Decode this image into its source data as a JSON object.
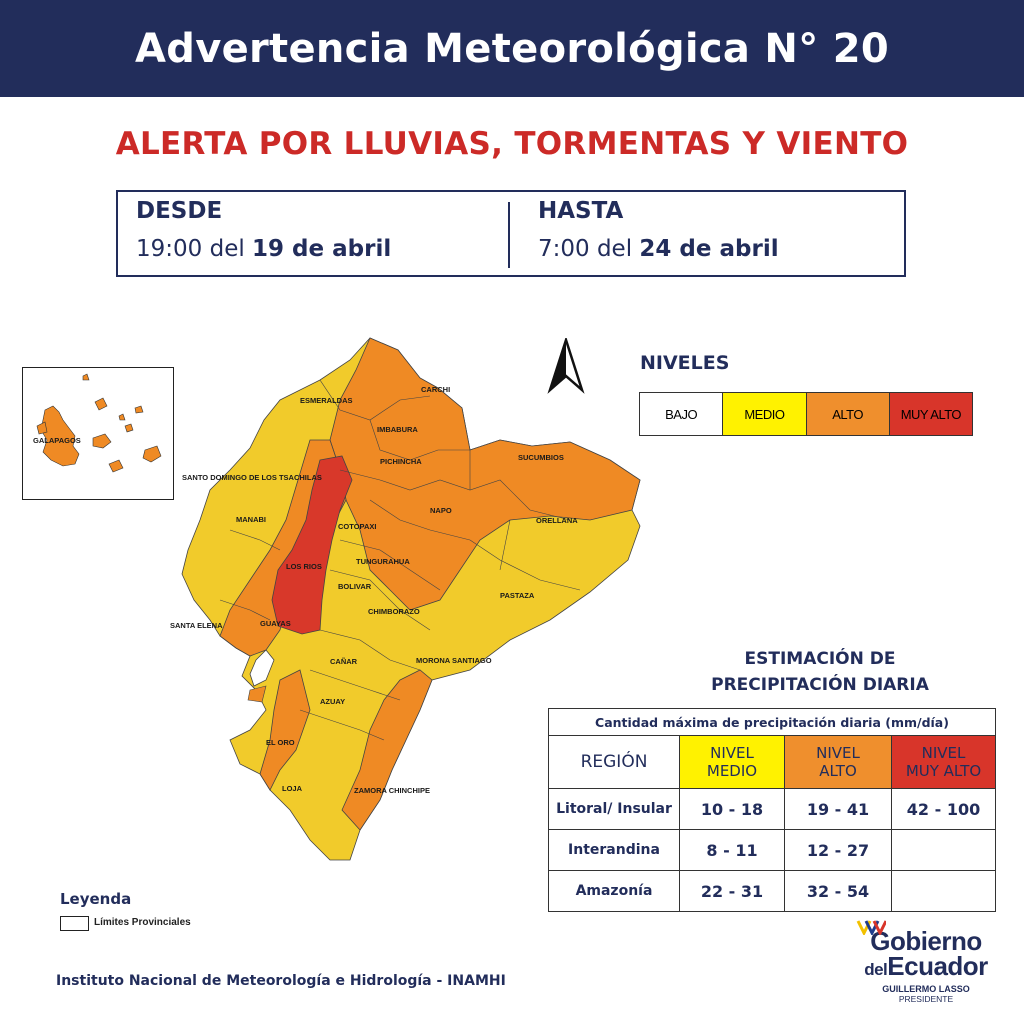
{
  "header": {
    "title": "Advertencia Meteorológica N° 20"
  },
  "alert": {
    "title": "ALERTA POR LLUVIAS, TORMENTAS Y VIENTO"
  },
  "period": {
    "from": {
      "label": "DESDE",
      "time": "19:00 del",
      "date": "19 de abril"
    },
    "to": {
      "label": "HASTA",
      "time": "7:00 del",
      "date": "24 de abril"
    }
  },
  "inset": {
    "label": "GALAPAGOS"
  },
  "map": {
    "provinces": [
      "ESMERALDAS",
      "CARCHI",
      "IMBABURA",
      "PICHINCHA",
      "SUCUMBIOS",
      "SANTO DOMINGO DE LOS TSACHILAS",
      "MANABI",
      "NAPO",
      "ORELLANA",
      "COTOPAXI",
      "LOS RIOS",
      "TUNGURAHUA",
      "BOLIVAR",
      "PASTAZA",
      "CHIMBORAZO",
      "SANTA ELENA",
      "GUAYAS",
      "CAÑAR",
      "MORONA SANTIAGO",
      "AZUAY",
      "EL ORO",
      "LOJA",
      "ZAMORA CHINCHIPE"
    ],
    "colors": {
      "bajo": "#ffffff",
      "medio": "#f4d21f",
      "alto": "#ef8a24",
      "muy_alto": "#d8382a",
      "background": "#f1cb2b"
    }
  },
  "levels": {
    "title": "NIVELES",
    "items": [
      {
        "label": "BAJO",
        "color": "#ffffff"
      },
      {
        "label": "MEDIO",
        "color": "#fff200"
      },
      {
        "label": "ALTO",
        "color": "#ef8f2d"
      },
      {
        "label": "MUY ALTO",
        "color": "#d8352a"
      }
    ]
  },
  "estimation": {
    "title_line1": "ESTIMACIÓN DE",
    "title_line2": "PRECIPITACIÓN DIARIA",
    "caption": "Cantidad máxima de precipitación diaria (mm/día)",
    "region_header": "REGIÓN",
    "col_medio": [
      "NIVEL",
      "MEDIO"
    ],
    "col_alto": [
      "NIVEL",
      "ALTO"
    ],
    "col_muy_alto": [
      "NIVEL",
      "MUY ALTO"
    ],
    "rows": [
      {
        "region": "Litoral/ Insular",
        "medio": "10 - 18",
        "alto": "19 - 41",
        "muy_alto": "42 - 100"
      },
      {
        "region": "Interandina",
        "medio": "8 - 11",
        "alto": "12 - 27",
        "muy_alto": ""
      },
      {
        "region": "Amazonía",
        "medio": "22 - 31",
        "alto": "32 - 54",
        "muy_alto": ""
      }
    ]
  },
  "legend": {
    "title": "Leyenda",
    "item": "Límites Provinciales"
  },
  "footer": {
    "institute": "Instituto Nacional de Meteorología e Hidrología - INAMHI"
  },
  "logo": {
    "line1": "Gobierno",
    "line2_small": "del",
    "line2_big": "Ecuador",
    "line3": "GUILLERMO LASSO",
    "line4": "PRESIDENTE"
  }
}
